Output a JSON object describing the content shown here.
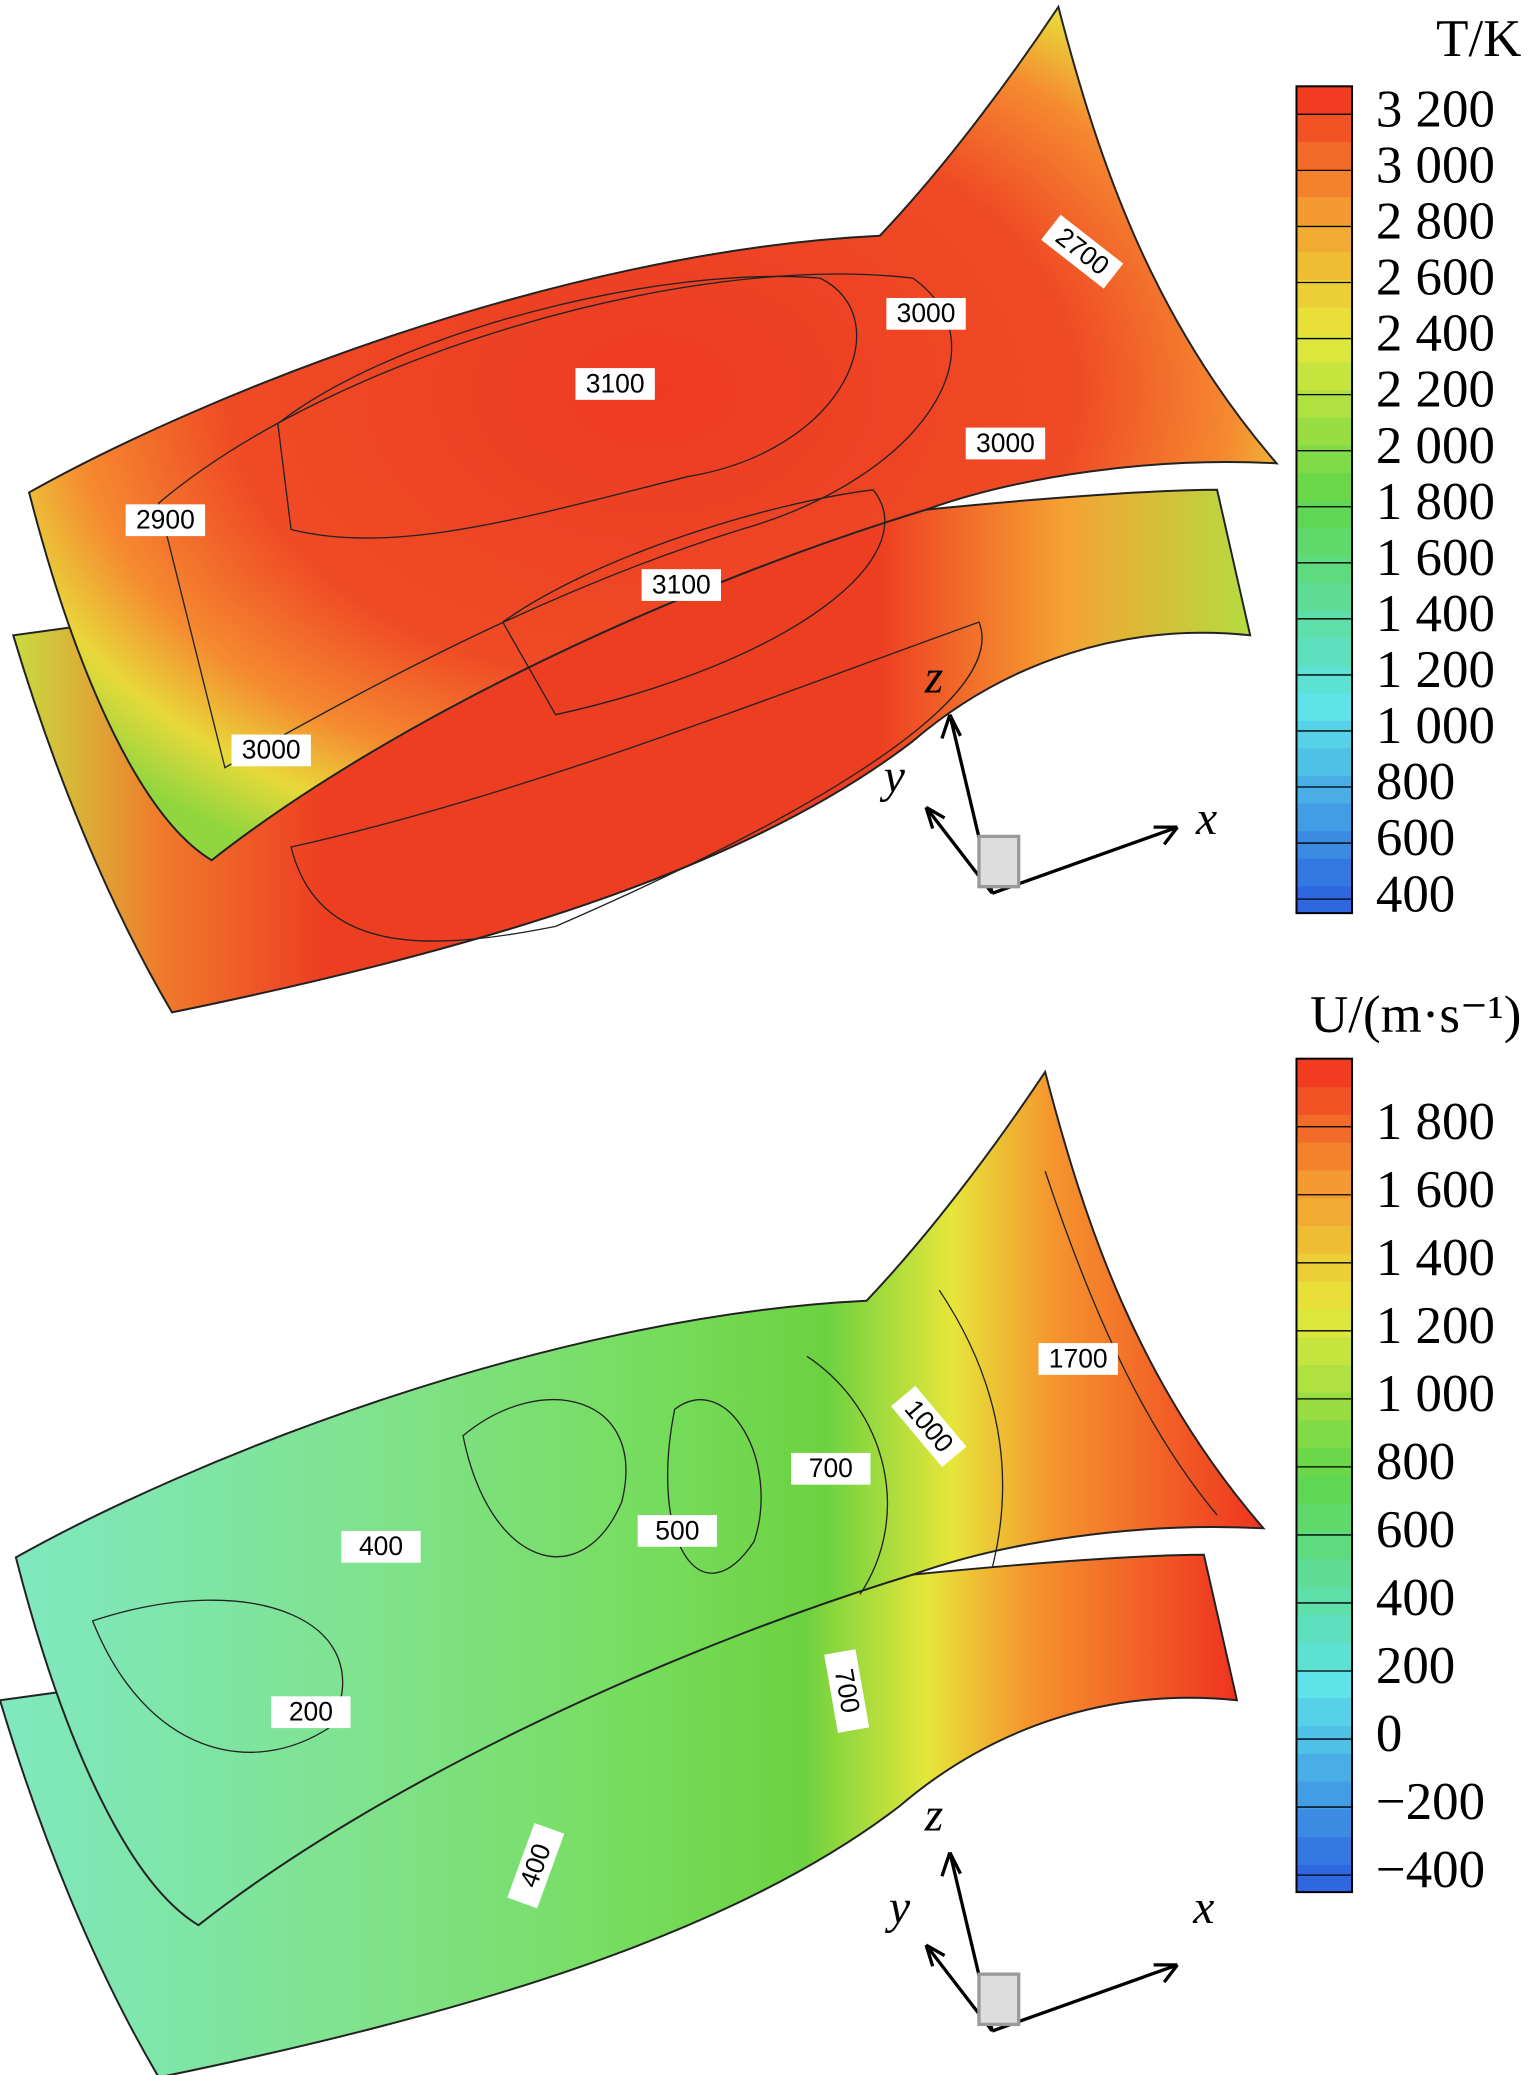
{
  "panels": [
    {
      "colorbar": {
        "title": "T/K",
        "lim": [
          350,
          3300
        ],
        "ticks": [
          {
            "value": 3200,
            "label": "3 200"
          },
          {
            "value": 3000,
            "label": "3 000"
          },
          {
            "value": 2800,
            "label": "2 800"
          },
          {
            "value": 2600,
            "label": "2 600"
          },
          {
            "value": 2400,
            "label": "2 400"
          },
          {
            "value": 2200,
            "label": "2 200"
          },
          {
            "value": 2000,
            "label": "2 000"
          },
          {
            "value": 1800,
            "label": "1 800"
          },
          {
            "value": 1600,
            "label": "1 600"
          },
          {
            "value": 1400,
            "label": "1 400"
          },
          {
            "value": 1200,
            "label": "1 200"
          },
          {
            "value": 1000,
            "label": "1 000"
          },
          800,
          600,
          400
        ]
      },
      "contour_labels": [
        2700,
        3000,
        3100,
        3000,
        2900,
        3100,
        3000
      ],
      "axes": {
        "x": "x",
        "y": "y",
        "z": "z"
      }
    },
    {
      "colorbar": {
        "title": "U/(m·s⁻¹)",
        "lim": [
          -450,
          2000
        ],
        "ticks": [
          {
            "value": 1800,
            "label": "1 800"
          },
          {
            "value": 1600,
            "label": "1 600"
          },
          {
            "value": 1400,
            "label": "1 400"
          },
          {
            "value": 1200,
            "label": "1 200"
          },
          {
            "value": 1000,
            "label": "1 000"
          },
          800,
          600,
          400,
          200,
          0,
          {
            "value": -200,
            "label": "−200"
          },
          {
            "value": -400,
            "label": "−400"
          }
        ]
      },
      "contour_labels": [
        1700,
        1000,
        700,
        500,
        400,
        200,
        700,
        400
      ],
      "axes": {
        "x": "x",
        "y": "y",
        "z": "z"
      }
    }
  ]
}
